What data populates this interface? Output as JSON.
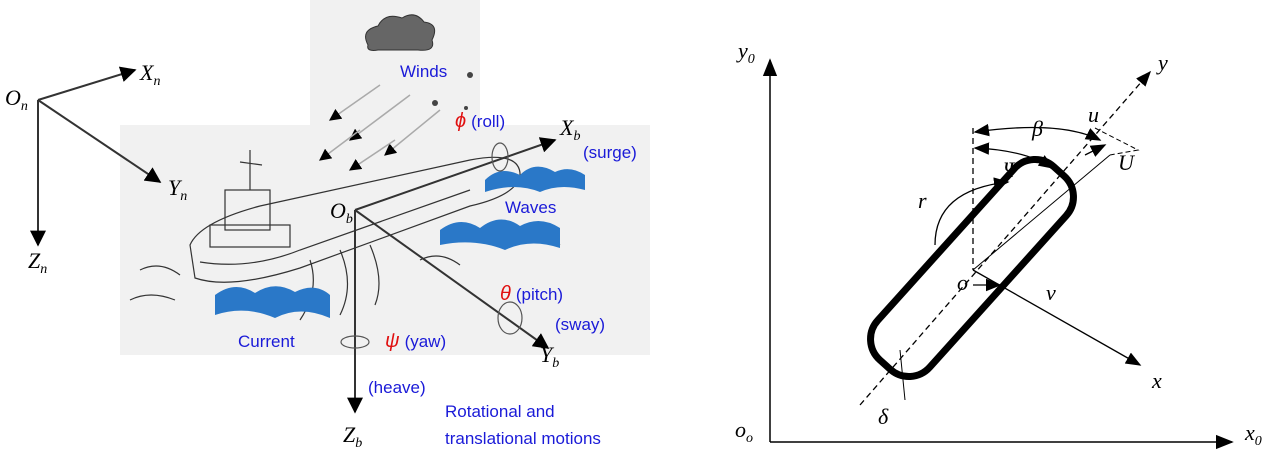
{
  "left": {
    "frame": {
      "origin": {
        "main": "O",
        "sub": "n"
      },
      "x": {
        "main": "X",
        "sub": "n"
      },
      "y": {
        "main": "Y",
        "sub": "n"
      },
      "z": {
        "main": "Z",
        "sub": "n"
      }
    },
    "body": {
      "origin": {
        "main": "O",
        "sub": "b"
      },
      "x": {
        "main": "X",
        "sub": "b"
      },
      "y": {
        "main": "Y",
        "sub": "b"
      },
      "z": {
        "main": "Z",
        "sub": "b"
      }
    },
    "motions": {
      "roll": {
        "symbol": "ϕ",
        "label": "(roll)"
      },
      "pitch": {
        "symbol": "θ",
        "label": "(pitch)"
      },
      "yaw": {
        "symbol": "ψ",
        "label": "(yaw)"
      },
      "surge": "(surge)",
      "sway": "(sway)",
      "heave": "(heave)"
    },
    "environment": {
      "winds": "Winds",
      "waves": "Waves",
      "current": "Current"
    },
    "caption": [
      "Rotational and",
      "translational motions"
    ]
  },
  "right": {
    "axes": {
      "origin": {
        "main": "o",
        "sub": "o"
      },
      "x": {
        "main": "x",
        "sub": "0"
      },
      "y": {
        "main": "y",
        "sub": "0"
      }
    },
    "body_axes": {
      "x": "x",
      "y": "y",
      "origin": "o"
    },
    "symbols": {
      "beta": "β",
      "psi": "Ψ",
      "u": "u",
      "U": "U",
      "r": "r",
      "v": "v",
      "delta": "δ"
    }
  }
}
